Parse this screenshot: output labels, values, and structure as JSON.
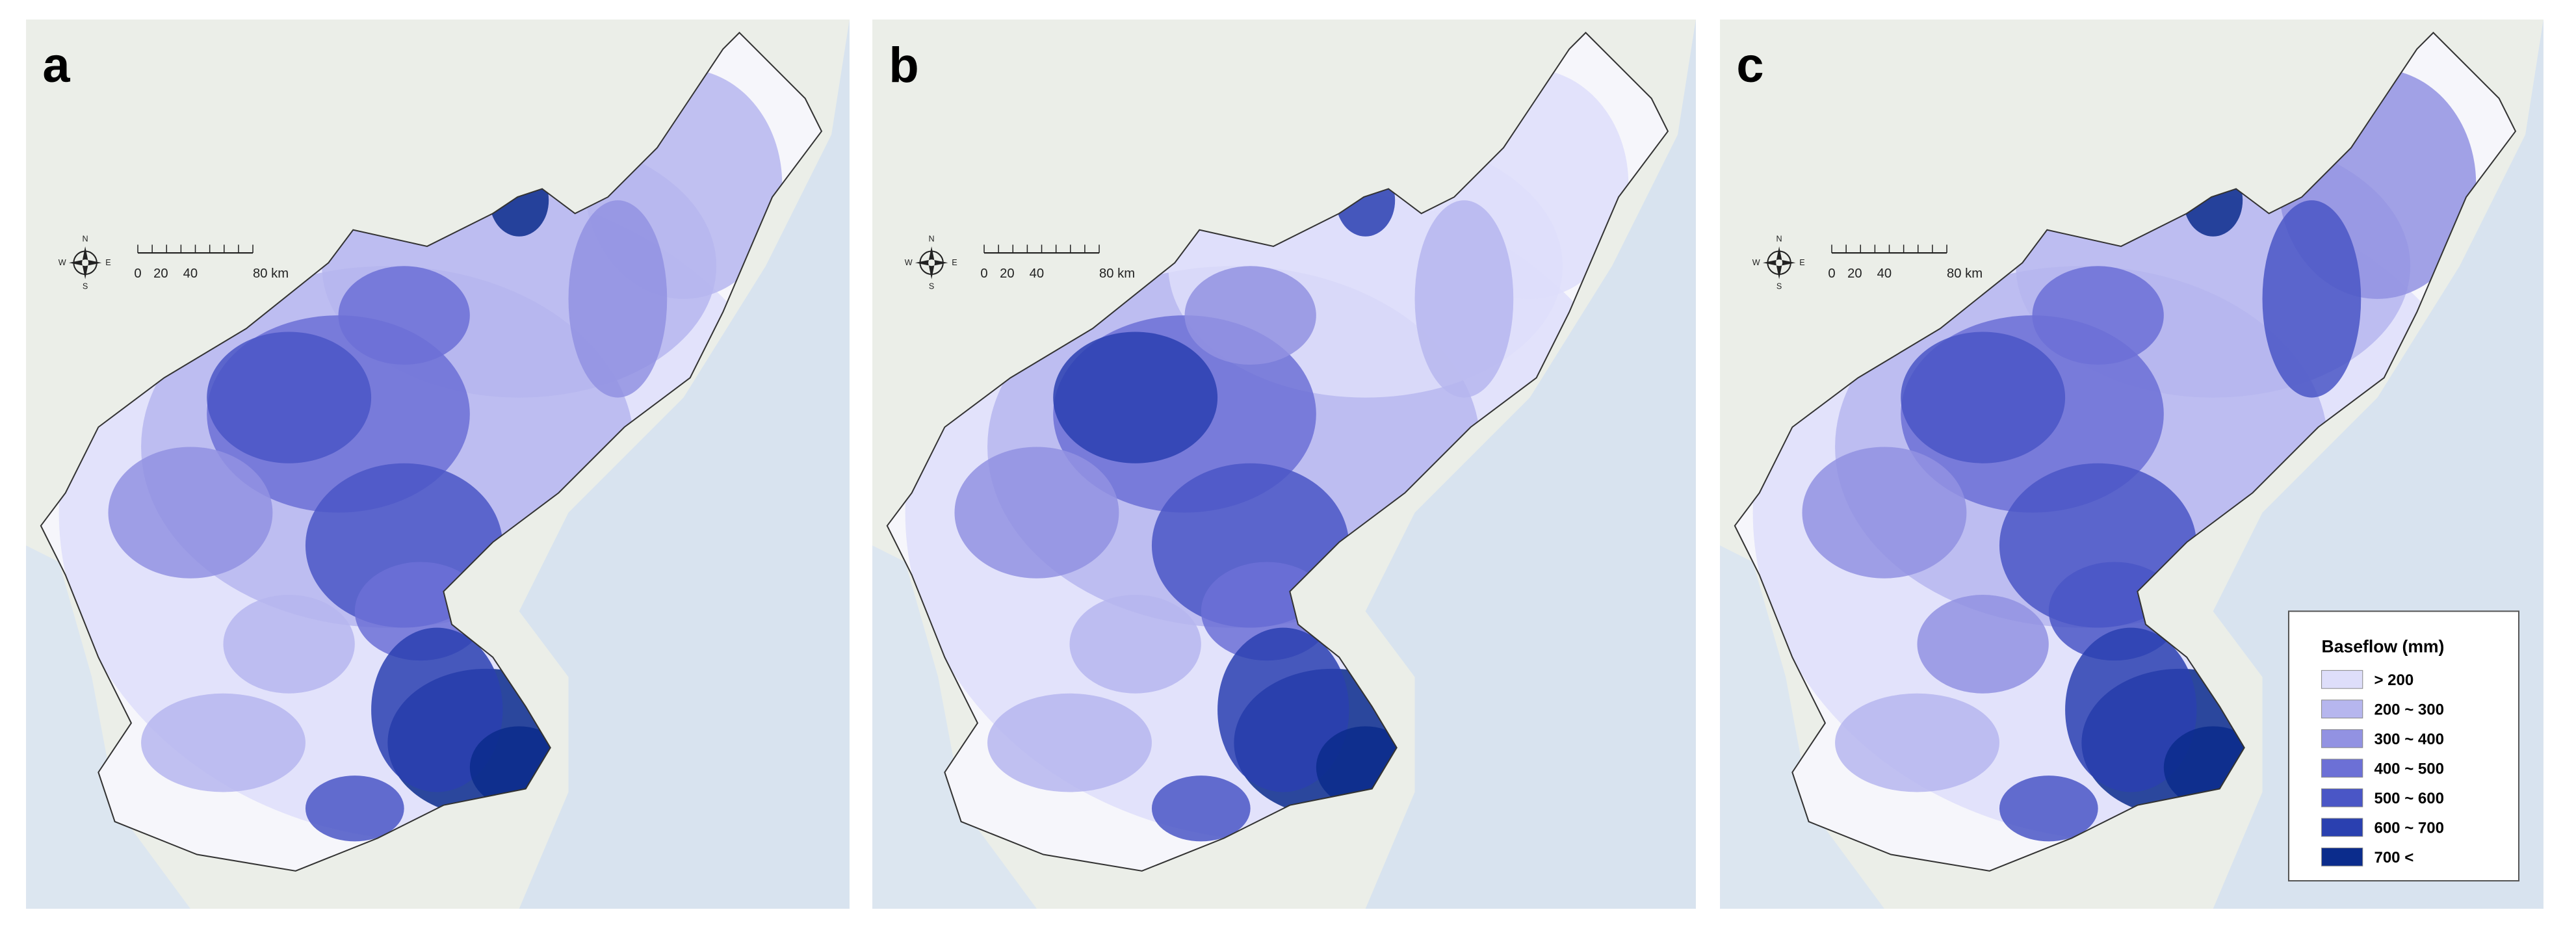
{
  "panels": [
    {
      "label": "a"
    },
    {
      "label": "b"
    },
    {
      "label": "c"
    }
  ],
  "scale_bar": {
    "labels": [
      "0",
      "20",
      "40",
      "80 km"
    ]
  },
  "compass": {
    "n": "N",
    "s": "S",
    "e": "E",
    "w": "W"
  },
  "legend": {
    "title": "Baseflow (mm)",
    "items": [
      {
        "label": "> 200",
        "color": "#dedefa"
      },
      {
        "label": "200 ~ 300",
        "color": "#b6b6ee"
      },
      {
        "label": "300 ~ 400",
        "color": "#9292e2"
      },
      {
        "label": "400 ~ 500",
        "color": "#6c70d6"
      },
      {
        "label": "500 ~ 600",
        "color": "#4a56c6"
      },
      {
        "label": "600 ~ 700",
        "color": "#2a40b0"
      },
      {
        "label": "700 <",
        "color": "#0b2c8c"
      }
    ]
  }
}
